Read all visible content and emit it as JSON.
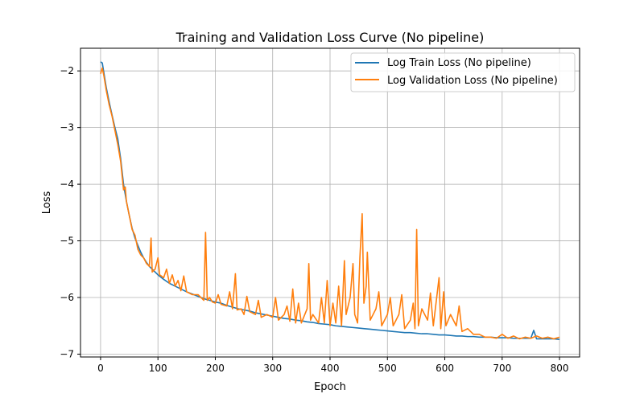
{
  "chart_data": {
    "type": "line",
    "title": "Training and Validation Loss Curve (No pipeline)",
    "xlabel": "Epoch",
    "ylabel": "Loss",
    "xlim": [
      -35,
      835
    ],
    "ylim": [
      -7.05,
      -1.6
    ],
    "xticks": [
      0,
      100,
      200,
      300,
      400,
      500,
      600,
      700,
      800
    ],
    "yticks": [
      -7,
      -6,
      -5,
      -4,
      -3,
      -2
    ],
    "ytick_labels": [
      "−7",
      "−6",
      "−5",
      "−4",
      "−3",
      "−2"
    ],
    "grid": true,
    "legend_position": "top-right",
    "series": [
      {
        "name": "Log Train Loss (No pipeline)",
        "color": "#1f77b4",
        "points": [
          [
            0,
            -1.84
          ],
          [
            3,
            -1.86
          ],
          [
            6,
            -2.05
          ],
          [
            10,
            -2.3
          ],
          [
            15,
            -2.55
          ],
          [
            20,
            -2.78
          ],
          [
            25,
            -3.0
          ],
          [
            30,
            -3.2
          ],
          [
            35,
            -3.55
          ],
          [
            40,
            -4.0
          ],
          [
            45,
            -4.3
          ],
          [
            50,
            -4.55
          ],
          [
            55,
            -4.78
          ],
          [
            60,
            -4.95
          ],
          [
            65,
            -5.08
          ],
          [
            70,
            -5.2
          ],
          [
            75,
            -5.3
          ],
          [
            80,
            -5.38
          ],
          [
            85,
            -5.45
          ],
          [
            90,
            -5.5
          ],
          [
            95,
            -5.55
          ],
          [
            100,
            -5.6
          ],
          [
            110,
            -5.68
          ],
          [
            120,
            -5.75
          ],
          [
            130,
            -5.8
          ],
          [
            140,
            -5.85
          ],
          [
            150,
            -5.9
          ],
          [
            160,
            -5.94
          ],
          [
            170,
            -5.98
          ],
          [
            180,
            -6.02
          ],
          [
            190,
            -6.05
          ],
          [
            200,
            -6.08
          ],
          [
            210,
            -6.1
          ],
          [
            220,
            -6.14
          ],
          [
            230,
            -6.17
          ],
          [
            240,
            -6.2
          ],
          [
            250,
            -6.22
          ],
          [
            260,
            -6.24
          ],
          [
            270,
            -6.27
          ],
          [
            280,
            -6.29
          ],
          [
            290,
            -6.31
          ],
          [
            300,
            -6.33
          ],
          [
            310,
            -6.35
          ],
          [
            320,
            -6.37
          ],
          [
            330,
            -6.38
          ],
          [
            340,
            -6.4
          ],
          [
            350,
            -6.41
          ],
          [
            360,
            -6.43
          ],
          [
            370,
            -6.44
          ],
          [
            380,
            -6.46
          ],
          [
            390,
            -6.47
          ],
          [
            400,
            -6.48
          ],
          [
            410,
            -6.5
          ],
          [
            420,
            -6.51
          ],
          [
            430,
            -6.52
          ],
          [
            440,
            -6.53
          ],
          [
            450,
            -6.54
          ],
          [
            460,
            -6.55
          ],
          [
            470,
            -6.56
          ],
          [
            480,
            -6.57
          ],
          [
            490,
            -6.58
          ],
          [
            500,
            -6.59
          ],
          [
            510,
            -6.6
          ],
          [
            520,
            -6.61
          ],
          [
            530,
            -6.62
          ],
          [
            540,
            -6.62
          ],
          [
            550,
            -6.63
          ],
          [
            560,
            -6.64
          ],
          [
            570,
            -6.64
          ],
          [
            580,
            -6.65
          ],
          [
            590,
            -6.66
          ],
          [
            600,
            -6.66
          ],
          [
            610,
            -6.67
          ],
          [
            620,
            -6.68
          ],
          [
            630,
            -6.68
          ],
          [
            640,
            -6.69
          ],
          [
            650,
            -6.69
          ],
          [
            660,
            -6.7
          ],
          [
            670,
            -6.7
          ],
          [
            680,
            -6.7
          ],
          [
            690,
            -6.71
          ],
          [
            700,
            -6.71
          ],
          [
            710,
            -6.71
          ],
          [
            720,
            -6.72
          ],
          [
            730,
            -6.72
          ],
          [
            740,
            -6.72
          ],
          [
            750,
            -6.72
          ],
          [
            755,
            -6.58
          ],
          [
            760,
            -6.73
          ],
          [
            770,
            -6.73
          ],
          [
            780,
            -6.73
          ],
          [
            790,
            -6.73
          ],
          [
            800,
            -6.74
          ]
        ]
      },
      {
        "name": "Log Validation Loss (No pipeline)",
        "color": "#ff7f0e",
        "points": [
          [
            0,
            -2.05
          ],
          [
            3,
            -1.95
          ],
          [
            6,
            -2.1
          ],
          [
            10,
            -2.35
          ],
          [
            15,
            -2.6
          ],
          [
            20,
            -2.8
          ],
          [
            25,
            -3.05
          ],
          [
            30,
            -3.3
          ],
          [
            35,
            -3.6
          ],
          [
            40,
            -4.1
          ],
          [
            43,
            -4.05
          ],
          [
            45,
            -4.3
          ],
          [
            50,
            -4.55
          ],
          [
            55,
            -4.8
          ],
          [
            60,
            -4.9
          ],
          [
            65,
            -5.15
          ],
          [
            70,
            -5.25
          ],
          [
            75,
            -5.3
          ],
          [
            80,
            -5.4
          ],
          [
            85,
            -5.45
          ],
          [
            88,
            -4.95
          ],
          [
            90,
            -5.55
          ],
          [
            95,
            -5.5
          ],
          [
            100,
            -5.3
          ],
          [
            103,
            -5.6
          ],
          [
            110,
            -5.65
          ],
          [
            115,
            -5.5
          ],
          [
            120,
            -5.75
          ],
          [
            125,
            -5.6
          ],
          [
            130,
            -5.8
          ],
          [
            135,
            -5.7
          ],
          [
            140,
            -5.88
          ],
          [
            145,
            -5.62
          ],
          [
            150,
            -5.9
          ],
          [
            160,
            -5.95
          ],
          [
            170,
            -5.95
          ],
          [
            180,
            -6.05
          ],
          [
            183,
            -4.85
          ],
          [
            186,
            -6.05
          ],
          [
            190,
            -6.0
          ],
          [
            195,
            -6.08
          ],
          [
            200,
            -6.1
          ],
          [
            205,
            -5.95
          ],
          [
            210,
            -6.12
          ],
          [
            220,
            -6.15
          ],
          [
            225,
            -5.9
          ],
          [
            230,
            -6.2
          ],
          [
            235,
            -5.58
          ],
          [
            238,
            -6.22
          ],
          [
            245,
            -6.2
          ],
          [
            250,
            -6.3
          ],
          [
            255,
            -5.98
          ],
          [
            260,
            -6.25
          ],
          [
            270,
            -6.3
          ],
          [
            275,
            -6.05
          ],
          [
            280,
            -6.35
          ],
          [
            290,
            -6.3
          ],
          [
            300,
            -6.35
          ],
          [
            305,
            -6.0
          ],
          [
            310,
            -6.4
          ],
          [
            320,
            -6.3
          ],
          [
            325,
            -6.15
          ],
          [
            330,
            -6.42
          ],
          [
            335,
            -5.85
          ],
          [
            340,
            -6.45
          ],
          [
            345,
            -6.1
          ],
          [
            350,
            -6.45
          ],
          [
            360,
            -6.2
          ],
          [
            363,
            -5.4
          ],
          [
            366,
            -6.4
          ],
          [
            370,
            -6.3
          ],
          [
            380,
            -6.45
          ],
          [
            385,
            -6.0
          ],
          [
            390,
            -6.45
          ],
          [
            395,
            -5.7
          ],
          [
            400,
            -6.5
          ],
          [
            405,
            -6.1
          ],
          [
            410,
            -6.45
          ],
          [
            415,
            -5.8
          ],
          [
            420,
            -6.5
          ],
          [
            425,
            -5.35
          ],
          [
            428,
            -6.3
          ],
          [
            435,
            -6.0
          ],
          [
            440,
            -5.4
          ],
          [
            443,
            -6.3
          ],
          [
            448,
            -6.45
          ],
          [
            452,
            -5.3
          ],
          [
            456,
            -4.52
          ],
          [
            459,
            -6.1
          ],
          [
            463,
            -5.8
          ],
          [
            465,
            -5.2
          ],
          [
            470,
            -6.4
          ],
          [
            480,
            -6.2
          ],
          [
            485,
            -5.9
          ],
          [
            490,
            -6.5
          ],
          [
            500,
            -6.3
          ],
          [
            505,
            -6.0
          ],
          [
            510,
            -6.5
          ],
          [
            520,
            -6.3
          ],
          [
            525,
            -5.95
          ],
          [
            530,
            -6.55
          ],
          [
            540,
            -6.4
          ],
          [
            545,
            -6.1
          ],
          [
            548,
            -6.55
          ],
          [
            551,
            -4.8
          ],
          [
            554,
            -6.5
          ],
          [
            560,
            -6.2
          ],
          [
            570,
            -6.4
          ],
          [
            575,
            -5.92
          ],
          [
            580,
            -6.5
          ],
          [
            590,
            -5.65
          ],
          [
            593,
            -6.55
          ],
          [
            598,
            -5.9
          ],
          [
            602,
            -6.5
          ],
          [
            610,
            -6.3
          ],
          [
            620,
            -6.5
          ],
          [
            625,
            -6.15
          ],
          [
            630,
            -6.6
          ],
          [
            640,
            -6.55
          ],
          [
            650,
            -6.65
          ],
          [
            660,
            -6.65
          ],
          [
            670,
            -6.7
          ],
          [
            680,
            -6.7
          ],
          [
            690,
            -6.72
          ],
          [
            700,
            -6.65
          ],
          [
            710,
            -6.72
          ],
          [
            720,
            -6.68
          ],
          [
            730,
            -6.73
          ],
          [
            740,
            -6.7
          ],
          [
            750,
            -6.72
          ],
          [
            760,
            -6.68
          ],
          [
            770,
            -6.72
          ],
          [
            780,
            -6.7
          ],
          [
            790,
            -6.73
          ],
          [
            800,
            -6.7
          ]
        ]
      }
    ]
  }
}
